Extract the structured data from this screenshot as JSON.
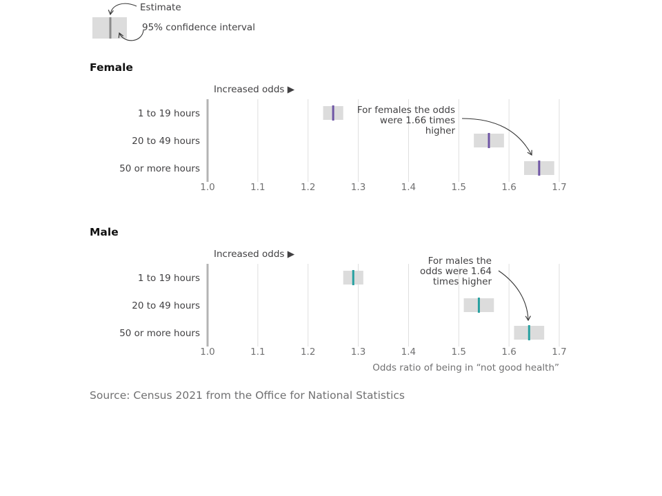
{
  "legend": {
    "estimate_label": "Estimate",
    "ci_label": "95% confidence interval"
  },
  "colors": {
    "female": "#6e55a5",
    "male": "#27a0a0",
    "ci_box": "#dcdcdc",
    "grid": "#dedede",
    "baseline": "#b4b4b4",
    "text": "#414042",
    "muted": "#707071"
  },
  "increased_odds_label": "Increased odds ▶",
  "x_axis_title": "Odds ratio of being in “not good health”",
  "source": "Source: Census 2021 from the Office for National Statistics",
  "chart_data": [
    {
      "type": "forest",
      "title": "Female",
      "xlim": [
        1.0,
        1.7
      ],
      "xticks": [
        "1.0",
        "1.1",
        "1.2",
        "1.3",
        "1.4",
        "1.5",
        "1.6",
        "1.7"
      ],
      "categories": [
        "1 to 19 hours",
        "20 to 49 hours",
        "50 or more hours"
      ],
      "estimates": [
        1.25,
        1.56,
        1.66
      ],
      "ci_low": [
        1.23,
        1.53,
        1.63
      ],
      "ci_high": [
        1.27,
        1.59,
        1.69
      ],
      "color": "#6e55a5",
      "annotation": [
        "For females the odds",
        "were 1.66 times",
        "higher"
      ]
    },
    {
      "type": "forest",
      "title": "Male",
      "xlim": [
        1.0,
        1.7
      ],
      "xticks": [
        "1.0",
        "1.1",
        "1.2",
        "1.3",
        "1.4",
        "1.5",
        "1.6",
        "1.7"
      ],
      "categories": [
        "1 to 19 hours",
        "20 to 49 hours",
        "50 or more hours"
      ],
      "estimates": [
        1.29,
        1.54,
        1.64
      ],
      "ci_low": [
        1.27,
        1.51,
        1.61
      ],
      "ci_high": [
        1.31,
        1.57,
        1.67
      ],
      "color": "#27a0a0",
      "annotation": [
        "For males the",
        "odds were 1.64",
        "times higher"
      ]
    }
  ]
}
